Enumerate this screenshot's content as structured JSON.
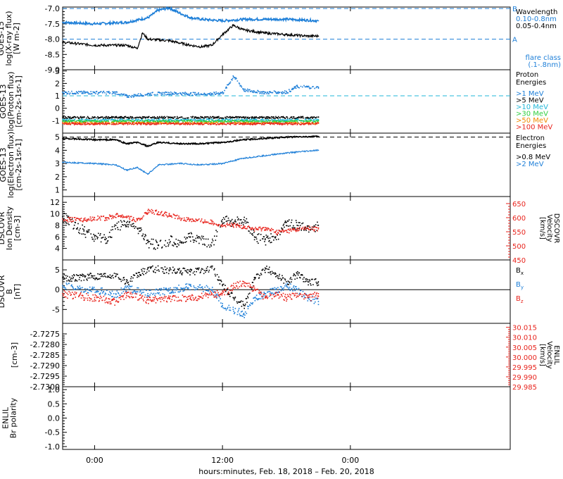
{
  "footer": {
    "xlabel": "hours:minutes, Feb. 18, 2018 – Feb. 20, 2018"
  },
  "colors": {
    "black": "#000000",
    "blue": "#1e7fd8",
    "cyan": "#22b7d8",
    "green": "#2fcf3f",
    "yellow": "#e0c400",
    "orange": "#f08a00",
    "red": "#e8231c"
  },
  "chart_data": [
    {
      "type": "line",
      "ylabel": [
        "GOES-15",
        "log(X-ray flux)",
        "[W m-2]"
      ],
      "ylim": [
        -9.0,
        -6.95
      ],
      "yticks": [
        -9.0,
        -8.5,
        -8.0,
        -7.5,
        -7.0
      ],
      "ytick_labels": [
        "-9.0",
        "-8.5",
        "-8.0",
        "-7.5",
        "-7.0"
      ],
      "xlim": [
        -3,
        39
      ],
      "xticks": [
        0,
        12,
        24
      ],
      "xtick_labels": [
        "0:00",
        "12:00",
        "0:00"
      ],
      "legend_title": "Wavelength",
      "dashed_levels": [
        {
          "y": -7.0,
          "label": "B"
        },
        {
          "y": -8.0,
          "label": "A"
        }
      ],
      "flare_note": [
        "flare class",
        "(.1-.8nm)"
      ],
      "series": [
        {
          "name": "0.10-0.8nm",
          "color": "#1e7fd8",
          "x": [
            -3,
            0,
            3,
            5,
            6,
            7,
            8,
            9,
            10,
            12,
            14,
            16,
            18,
            20,
            21
          ],
          "y": [
            -7.45,
            -7.5,
            -7.45,
            -7.3,
            -7.05,
            -6.98,
            -7.15,
            -7.3,
            -7.35,
            -7.4,
            -7.35,
            -7.35,
            -7.35,
            -7.38,
            -7.4
          ]
        },
        {
          "name": "0.05-0.4nm",
          "color": "#000000",
          "x": [
            -3,
            0,
            2,
            3,
            4,
            4.5,
            5,
            7,
            9,
            10,
            11,
            12,
            13,
            14,
            16,
            18,
            20,
            21
          ],
          "y": [
            -8.1,
            -8.2,
            -8.2,
            -8.2,
            -8.3,
            -7.8,
            -8.0,
            -8.05,
            -8.2,
            -8.25,
            -8.2,
            -7.85,
            -7.55,
            -7.7,
            -7.8,
            -7.85,
            -7.9,
            -7.9
          ]
        }
      ]
    },
    {
      "type": "scatter",
      "ylabel": [
        "GOES-13",
        "log(Proton flux)",
        "[cm-2s-1sr-1]"
      ],
      "ylim": [
        -2,
        3.1
      ],
      "yticks": [
        -1,
        0,
        1,
        2,
        3
      ],
      "ytick_labels": [
        "-1",
        "0",
        "1",
        "2",
        "3"
      ],
      "xlim": [
        -3,
        39
      ],
      "legend_title": [
        "Proton",
        "Energies"
      ],
      "dashed_levels": [
        {
          "y": 1.0
        }
      ],
      "series": [
        {
          "name": ">1 MeV",
          "color": "#1e7fd8",
          "x": [
            -3,
            0,
            2,
            3,
            5,
            7,
            9,
            11,
            12,
            13,
            14,
            16,
            18,
            19,
            20,
            21
          ],
          "y": [
            1.3,
            1.3,
            1.3,
            1.0,
            1.2,
            1.25,
            1.2,
            1.2,
            1.3,
            2.6,
            1.5,
            1.3,
            1.35,
            1.8,
            1.75,
            1.7
          ]
        },
        {
          "name": ">5 MeV",
          "color": "#000000",
          "x": [
            -3,
            0,
            5,
            10,
            15,
            21
          ],
          "y": [
            -0.7,
            -0.7,
            -0.7,
            -0.7,
            -0.7,
            -0.7
          ]
        },
        {
          "name": ">10 MeV",
          "color": "#22b7d8",
          "x": [
            -3,
            0,
            5,
            10,
            15,
            21
          ],
          "y": [
            -0.9,
            -0.9,
            -0.9,
            -0.9,
            -0.9,
            -0.9
          ]
        },
        {
          "name": ">30 MeV",
          "color": "#2fcf3f",
          "x": [
            -3,
            0,
            5,
            10,
            15,
            21
          ],
          "y": [
            -1.0,
            -1.0,
            -1.0,
            -1.0,
            -1.0,
            -1.0
          ]
        },
        {
          "name": ">50 MeV",
          "color": "#f08a00",
          "x": [
            -3,
            0,
            5,
            10,
            15,
            21
          ],
          "y": [
            -1.15,
            -1.15,
            -1.15,
            -1.15,
            -1.15,
            -1.15
          ]
        },
        {
          "name": ">100 MeV",
          "color": "#e8231c",
          "x": [
            -3,
            0,
            5,
            10,
            15,
            21
          ],
          "y": [
            -1.2,
            -1.2,
            -1.2,
            -1.2,
            -1.2,
            -1.2
          ]
        }
      ]
    },
    {
      "type": "line",
      "ylabel": [
        "GOES-13",
        "log(Electron flux)",
        "[cm-2s-1sr-1]"
      ],
      "ylim": [
        0.5,
        5.3
      ],
      "yticks": [
        1,
        2,
        3,
        4,
        5
      ],
      "ytick_labels": [
        "1",
        "2",
        "3",
        "4",
        "5"
      ],
      "xlim": [
        -3,
        39
      ],
      "legend_title": [
        "Electron",
        "Energies"
      ],
      "dashed_levels": [
        {
          "y": 5.0
        }
      ],
      "series": [
        {
          "name": ">0.8 MeV",
          "color": "#000000",
          "x": [
            -3,
            0,
            2,
            3,
            4,
            5,
            6,
            8,
            10,
            12,
            14,
            18,
            21
          ],
          "y": [
            4.9,
            4.8,
            4.8,
            4.5,
            4.6,
            4.3,
            4.6,
            4.5,
            4.5,
            4.6,
            4.8,
            5.0,
            5.05
          ]
        },
        {
          "name": ">2 MeV",
          "color": "#1e7fd8",
          "x": [
            -3,
            0,
            2,
            3,
            4,
            5,
            6,
            8,
            10,
            12,
            14,
            18,
            21
          ],
          "y": [
            3.1,
            3.0,
            2.9,
            2.5,
            2.7,
            2.2,
            2.9,
            3.0,
            2.9,
            3.0,
            3.4,
            3.8,
            4.0
          ]
        }
      ]
    },
    {
      "type": "scatter",
      "ylabel": [
        "DSCOVR",
        "Ion Density",
        "[cm-3]"
      ],
      "ylim": [
        2,
        13
      ],
      "yticks": [
        4,
        6,
        8,
        10,
        12
      ],
      "ytick_labels": [
        "4",
        "6",
        "8",
        "10",
        "12"
      ],
      "xlim": [
        -3,
        39
      ],
      "y2label": [
        "DSCOVR",
        "Velocity",
        "[km/s]"
      ],
      "y2lim": [
        450,
        675
      ],
      "y2ticks": [
        450,
        500,
        550,
        600,
        650
      ],
      "y2tick_labels": [
        "450",
        "500",
        "550",
        "600",
        "650"
      ],
      "series": [
        {
          "name": "density",
          "color": "#000000",
          "x": [
            -3,
            -1,
            0,
            1,
            2,
            3,
            4,
            5,
            6,
            7,
            8,
            9,
            10,
            11,
            12,
            13,
            14,
            15,
            16,
            17,
            18,
            19,
            20,
            21
          ],
          "y": [
            9.5,
            7.0,
            6.0,
            5.5,
            8.0,
            8.5,
            7.5,
            5.0,
            4.5,
            5.5,
            5.0,
            6.0,
            5.5,
            5.0,
            9.0,
            8.5,
            9.0,
            6.0,
            5.5,
            6.0,
            8.5,
            8.0,
            7.5,
            8.0
          ]
        },
        {
          "name": "velocity",
          "axis": "y2",
          "color": "#e8231c",
          "x": [
            -3,
            -1,
            0,
            1,
            2,
            3,
            4,
            5,
            6,
            7,
            8,
            9,
            10,
            11,
            12,
            13,
            14,
            15,
            16,
            17,
            18,
            19,
            20,
            21
          ],
          "y": [
            595,
            595,
            600,
            600,
            610,
            605,
            590,
            625,
            620,
            610,
            600,
            595,
            590,
            585,
            575,
            575,
            570,
            560,
            565,
            550,
            555,
            560,
            565,
            560
          ]
        }
      ]
    },
    {
      "type": "scatter",
      "ylabel": [
        "DSCOVR",
        "B",
        "[nT]"
      ],
      "ylim": [
        -8.5,
        7.5
      ],
      "yticks": [
        -5,
        0,
        5
      ],
      "ytick_labels": [
        "-5",
        "0",
        "5"
      ],
      "xlim": [
        -3,
        39
      ],
      "series": [
        {
          "name": "Bx",
          "color": "#000000",
          "x": [
            -3,
            0,
            2,
            3,
            5,
            7,
            9,
            11,
            12,
            13,
            14,
            15,
            16,
            17,
            18,
            19,
            20,
            21
          ],
          "y": [
            3,
            3.5,
            4,
            2,
            5.5,
            5,
            4.5,
            5.5,
            1,
            -2,
            -4,
            3,
            5.5,
            4,
            2,
            4,
            2,
            2
          ]
        },
        {
          "name": "By",
          "color": "#1e7fd8",
          "x": [
            -3,
            0,
            2,
            3,
            5,
            7,
            9,
            11,
            12,
            13,
            14,
            15,
            16,
            17,
            18,
            19,
            20,
            21
          ],
          "y": [
            1,
            0,
            -1,
            0.5,
            -1,
            0,
            1,
            0,
            -4,
            -5,
            -6,
            -2,
            -1,
            0,
            1,
            0,
            -2,
            -3
          ]
        },
        {
          "name": "Bz",
          "color": "#e8231c",
          "x": [
            -3,
            0,
            2,
            3,
            5,
            7,
            9,
            11,
            12,
            13,
            14,
            15,
            16,
            17,
            18,
            19,
            20,
            21
          ],
          "y": [
            -1,
            -2,
            -3,
            -1,
            -2.5,
            -2,
            -2,
            -1,
            -1,
            1,
            2,
            0,
            -2,
            -1,
            -2,
            -1,
            -2,
            -1
          ]
        }
      ]
    },
    {
      "type": "line",
      "ylabel": [
        "",
        "[cm-3]"
      ],
      "ylim": [
        -2.73,
        -2.727
      ],
      "yticks": [
        -2.7275,
        -2.728,
        -2.7285,
        -2.729,
        -2.7295,
        -2.73
      ],
      "ytick_labels": [
        "-2.7275",
        "-2.7280",
        "-2.7285",
        "-2.7290",
        "-2.7295",
        "-2.7300"
      ],
      "xlim": [
        -3,
        39
      ],
      "y2label": [
        "ENLIL",
        "Velocity",
        "[km/s]"
      ],
      "y2lim": [
        29.985,
        30.017
      ],
      "y2ticks": [
        29.985,
        29.99,
        29.995,
        30.0,
        30.005,
        30.01,
        30.015
      ],
      "y2tick_labels": [
        "29.985",
        "29.990",
        "29.995",
        "30.000",
        "30.005",
        "30.010",
        "30.015"
      ],
      "series": []
    },
    {
      "type": "line",
      "ylabel": [
        "ENLIL",
        "Br polarity"
      ],
      "ylim": [
        -1.1,
        1.1
      ],
      "yticks": [
        -1.0,
        -0.5,
        0.0,
        0.5,
        1.0
      ],
      "ytick_labels": [
        "-1.0",
        "-0.5",
        "0.0",
        "0.5",
        "1.0"
      ],
      "xlim": [
        -3,
        39
      ],
      "series": []
    }
  ]
}
